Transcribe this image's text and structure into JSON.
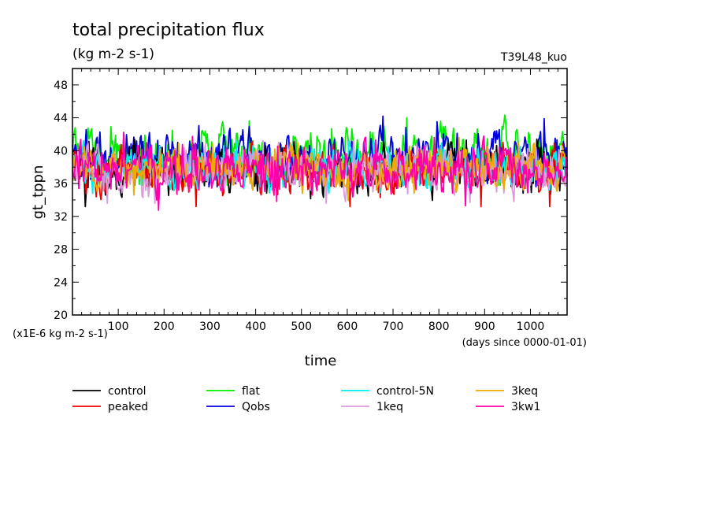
{
  "chart_data": {
    "type": "line",
    "title": "total precipitation flux",
    "subtitle": "(kg m-2 s-1)",
    "run_label": "T39L48_kuo",
    "xlabel": "time",
    "xunits": "(days since 0000-01-01)",
    "ylabel": "gt_tppn",
    "yunits": "(x1E-6 kg m-2 s-1)",
    "xlim": [
      0,
      1080
    ],
    "ylim": [
      20,
      50
    ],
    "xticks": [
      100,
      200,
      300,
      400,
      500,
      600,
      700,
      800,
      900,
      1000
    ],
    "yticks": [
      20,
      24,
      28,
      32,
      36,
      40,
      44,
      48
    ],
    "grid": false,
    "legend_position": "bottom",
    "series": [
      {
        "name": "control",
        "color": "#000000",
        "mean": 37.6,
        "amp": 1.5,
        "min": 33.2,
        "max": 41.4
      },
      {
        "name": "flat",
        "color": "#00ee00",
        "mean": 39.6,
        "amp": 1.7,
        "min": 35.8,
        "max": 45.2
      },
      {
        "name": "control-5N",
        "color": "#00eeee",
        "mean": 37.9,
        "amp": 1.4,
        "min": 32.8,
        "max": 41.2
      },
      {
        "name": "3keq",
        "color": "#eeaa00",
        "mean": 37.9,
        "amp": 1.4,
        "min": 33.2,
        "max": 41.6
      },
      {
        "name": "peaked",
        "color": "#ee0000",
        "mean": 37.6,
        "amp": 1.5,
        "min": 33.2,
        "max": 41.8
      },
      {
        "name": "Qobs",
        "color": "#0000dd",
        "mean": 39.4,
        "amp": 1.5,
        "min": 35.6,
        "max": 44.2
      },
      {
        "name": "1keq",
        "color": "#dd99dd",
        "mean": 37.6,
        "amp": 1.5,
        "min": 33.6,
        "max": 41.2
      },
      {
        "name": "3kw1",
        "color": "#ff00aa",
        "mean": 37.8,
        "amp": 1.5,
        "min": 32.0,
        "max": 42.2
      }
    ]
  }
}
